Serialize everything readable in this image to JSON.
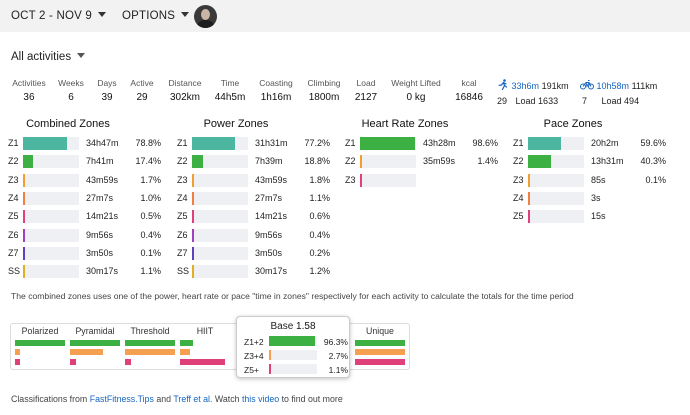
{
  "header": {
    "date_range": "OCT 2 - NOV 9",
    "options": "OPTIONS"
  },
  "filter": {
    "activity_filter": "All activities"
  },
  "stats": [
    {
      "label": "Activities",
      "value": "36"
    },
    {
      "label": "Weeks",
      "value": "6"
    },
    {
      "label": "Days",
      "value": "39"
    },
    {
      "label": "Active",
      "value": "29"
    },
    {
      "label": "Distance",
      "value": "302km"
    },
    {
      "label": "Time",
      "value": "44h5m"
    },
    {
      "label": "Coasting",
      "value": "1h16m"
    },
    {
      "label": "Climbing",
      "value": "1800m"
    },
    {
      "label": "Load",
      "value": "2127"
    },
    {
      "label": "Weight Lifted",
      "value": "0 kg"
    },
    {
      "label": "kcal",
      "value": "16846"
    }
  ],
  "sports": [
    {
      "icon": "run-icon",
      "time": "33h6m",
      "distance": "191km",
      "count": "29",
      "load": "Load 1633"
    },
    {
      "icon": "bike-icon",
      "time": "10h58m",
      "distance": "111km",
      "count": "7",
      "load": "Load 494"
    }
  ],
  "zones": [
    {
      "title": "Combined Zones",
      "rows": [
        {
          "zone": "Z1",
          "time": "34h47m",
          "pct": "78.8%",
          "frac": 0.788,
          "color": "#4db6a0"
        },
        {
          "zone": "Z2",
          "time": "7h41m",
          "pct": "17.4%",
          "frac": 0.174,
          "color": "#3cb043"
        },
        {
          "zone": "Z3",
          "time": "43m59s",
          "pct": "1.7%",
          "frac": 0.017,
          "color": "#f0a030"
        },
        {
          "zone": "Z4",
          "time": "27m7s",
          "pct": "1.0%",
          "frac": 0.01,
          "color": "#f08040"
        },
        {
          "zone": "Z5",
          "time": "14m21s",
          "pct": "0.5%",
          "frac": 0.005,
          "color": "#e04080"
        },
        {
          "zone": "Z6",
          "time": "9m56s",
          "pct": "0.4%",
          "frac": 0.004,
          "color": "#a040c0"
        },
        {
          "zone": "Z7",
          "time": "3m50s",
          "pct": "0.1%",
          "frac": 0.001,
          "color": "#6040c0"
        },
        {
          "zone": "SS",
          "time": "30m17s",
          "pct": "1.1%",
          "frac": 0.011,
          "color": "#e0b020"
        }
      ]
    },
    {
      "title": "Power Zones",
      "rows": [
        {
          "zone": "Z1",
          "time": "31h31m",
          "pct": "77.2%",
          "frac": 0.772,
          "color": "#4db6a0"
        },
        {
          "zone": "Z2",
          "time": "7h39m",
          "pct": "18.8%",
          "frac": 0.188,
          "color": "#3cb043"
        },
        {
          "zone": "Z3",
          "time": "43m59s",
          "pct": "1.8%",
          "frac": 0.018,
          "color": "#f0a030"
        },
        {
          "zone": "Z4",
          "time": "27m7s",
          "pct": "1.1%",
          "frac": 0.011,
          "color": "#f08040"
        },
        {
          "zone": "Z5",
          "time": "14m21s",
          "pct": "0.6%",
          "frac": 0.006,
          "color": "#e04080"
        },
        {
          "zone": "Z6",
          "time": "9m56s",
          "pct": "0.4%",
          "frac": 0.004,
          "color": "#a040c0"
        },
        {
          "zone": "Z7",
          "time": "3m50s",
          "pct": "0.2%",
          "frac": 0.002,
          "color": "#6040c0"
        },
        {
          "zone": "SS",
          "time": "30m17s",
          "pct": "1.2%",
          "frac": 0.012,
          "color": "#e0b020"
        }
      ]
    },
    {
      "title": "Heart Rate Zones",
      "rows": [
        {
          "zone": "Z1",
          "time": "43h28m",
          "pct": "98.6%",
          "frac": 0.986,
          "color": "#3cb043"
        },
        {
          "zone": "Z2",
          "time": "35m59s",
          "pct": "1.4%",
          "frac": 0.014,
          "color": "#f0a030"
        },
        {
          "zone": "Z3",
          "time": "",
          "pct": "",
          "frac": 0,
          "color": "#e04080"
        }
      ]
    },
    {
      "title": "Pace Zones",
      "rows": [
        {
          "zone": "Z1",
          "time": "20h2m",
          "pct": "59.6%",
          "frac": 0.596,
          "color": "#4db6a0"
        },
        {
          "zone": "Z2",
          "time": "13h31m",
          "pct": "40.3%",
          "frac": 0.403,
          "color": "#3cb043"
        },
        {
          "zone": "Z3",
          "time": "85s",
          "pct": "0.1%",
          "frac": 0.001,
          "color": "#f0a030"
        },
        {
          "zone": "Z4",
          "time": "3s",
          "pct": "",
          "frac": 0,
          "color": "#f08040"
        },
        {
          "zone": "Z5",
          "time": "15s",
          "pct": "",
          "frac": 0,
          "color": "#e04080"
        }
      ]
    }
  ],
  "note": "The combined zones uses one of the power, heart rate or pace \"time in zones\" respectively for each activity to calculate the totals for the time period",
  "classifications": [
    {
      "name": "Polarized",
      "bars": [
        1.0,
        0.1,
        0.1
      ]
    },
    {
      "name": "Pyramidal",
      "bars": [
        1.0,
        0.65,
        0.12
      ]
    },
    {
      "name": "Threshold",
      "bars": [
        1.0,
        1.0,
        0.12
      ]
    },
    {
      "name": "HIIT",
      "bars": [
        0.25,
        0.2,
        0.9
      ]
    },
    {
      "name": "Unique",
      "bars": [
        1.0,
        1.0,
        1.0
      ]
    }
  ],
  "classification_colors": [
    "#3cb043",
    "#f5a050",
    "#e0407a"
  ],
  "popup": {
    "title": "Base",
    "score": "1.58",
    "rows": [
      {
        "label": "Z1+2",
        "pct": "96.3%",
        "frac": 0.963,
        "color": "#3cb043"
      },
      {
        "label": "Z3+4",
        "pct": "2.7%",
        "frac": 0.027,
        "color": "#f5a050"
      },
      {
        "label": "Z5+",
        "pct": "1.1%",
        "frac": 0.011,
        "color": "#e0407a"
      }
    ]
  },
  "footer": {
    "text1": "Classifications from ",
    "link1": "FastFitness.Tips",
    "text2": " and ",
    "link2": "Treff et al.",
    "text3": " Watch ",
    "link3": "this video",
    "text4": " to find out more"
  }
}
